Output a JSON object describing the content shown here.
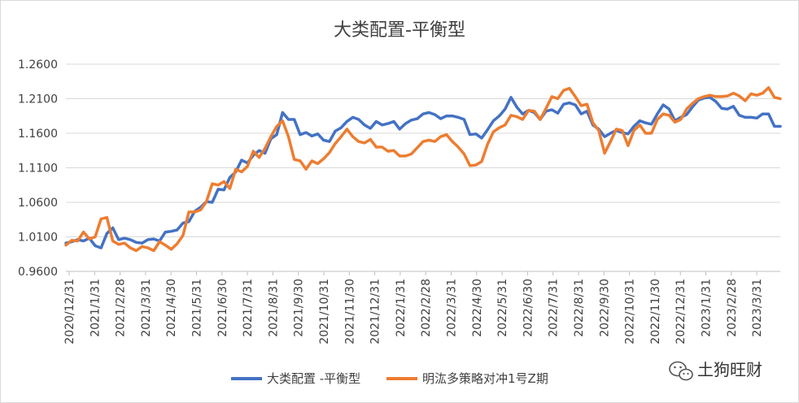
{
  "chart_data": {
    "type": "line",
    "title": "大类配置-平衡型",
    "xlabel": "",
    "ylabel": "",
    "ylim": [
      0.96,
      1.26
    ],
    "yticks": [
      "0.9600",
      "1.0100",
      "1.0600",
      "1.1100",
      "1.1600",
      "1.2100",
      "1.2600"
    ],
    "xtick_labels": [
      "2020/12/31",
      "2021/1/31",
      "2021/2/28",
      "2021/3/31",
      "2021/4/30",
      "2021/5/31",
      "2021/6/30",
      "2021/7/31",
      "2021/8/31",
      "2021/9/30",
      "2021/10/31",
      "2021/11/30",
      "2021/12/31",
      "2022/1/31",
      "2022/2/28",
      "2022/3/31",
      "2022/4/30",
      "2022/5/31",
      "2022/6/30",
      "2022/7/31",
      "2022/8/31",
      "2022/9/30",
      "2022/10/31",
      "2022/11/30",
      "2022/12/31",
      "2023/1/31",
      "2023/2/28",
      "2023/3/31"
    ],
    "grid": true,
    "legend_position": "bottom",
    "series": [
      {
        "name": "大类配置 -平衡型",
        "color": "#4472c4",
        "values": [
          1.001,
          1.003,
          1.006,
          1.004,
          1.008,
          0.997,
          0.994,
          1.015,
          1.023,
          1.006,
          1.008,
          1.006,
          1.002,
          1.001,
          1.006,
          1.007,
          1.004,
          1.017,
          1.018,
          1.02,
          1.03,
          1.032,
          1.047,
          1.053,
          1.061,
          1.06,
          1.079,
          1.078,
          1.096,
          1.104,
          1.121,
          1.117,
          1.128,
          1.135,
          1.131,
          1.152,
          1.158,
          1.19,
          1.18,
          1.18,
          1.158,
          1.161,
          1.156,
          1.159,
          1.15,
          1.148,
          1.163,
          1.168,
          1.177,
          1.183,
          1.18,
          1.172,
          1.167,
          1.177,
          1.172,
          1.174,
          1.177,
          1.166,
          1.174,
          1.179,
          1.181,
          1.188,
          1.19,
          1.187,
          1.181,
          1.185,
          1.185,
          1.183,
          1.18,
          1.158,
          1.159,
          1.153,
          1.165,
          1.178,
          1.185,
          1.195,
          1.212,
          1.198,
          1.188,
          1.193,
          1.19,
          1.18,
          1.192,
          1.194,
          1.189,
          1.202,
          1.204,
          1.201,
          1.188,
          1.192,
          1.172,
          1.166,
          1.155,
          1.16,
          1.164,
          1.161,
          1.159,
          1.17,
          1.178,
          1.175,
          1.173,
          1.188,
          1.201,
          1.195,
          1.178,
          1.183,
          1.187,
          1.198,
          1.208,
          1.211,
          1.212,
          1.206,
          1.196,
          1.195,
          1.199,
          1.186,
          1.183,
          1.183,
          1.182,
          1.188,
          1.188,
          1.17,
          1.17
        ]
      },
      {
        "name": "明汯多策略对冲1号Z期",
        "color": "#ed7d31",
        "values": [
          0.998,
          1.005,
          1.004,
          1.017,
          1.007,
          1.01,
          1.036,
          1.038,
          1.004,
          0.999,
          1.001,
          0.994,
          0.99,
          0.996,
          0.994,
          0.99,
          1.003,
          0.998,
          0.992,
          1.0,
          1.012,
          1.046,
          1.046,
          1.049,
          1.061,
          1.087,
          1.085,
          1.09,
          1.08,
          1.108,
          1.104,
          1.112,
          1.134,
          1.125,
          1.138,
          1.155,
          1.17,
          1.178,
          1.155,
          1.122,
          1.12,
          1.108,
          1.12,
          1.116,
          1.123,
          1.132,
          1.145,
          1.155,
          1.166,
          1.155,
          1.148,
          1.146,
          1.151,
          1.14,
          1.14,
          1.134,
          1.135,
          1.127,
          1.127,
          1.13,
          1.139,
          1.148,
          1.15,
          1.148,
          1.155,
          1.158,
          1.148,
          1.14,
          1.13,
          1.113,
          1.114,
          1.119,
          1.144,
          1.162,
          1.168,
          1.172,
          1.186,
          1.184,
          1.18,
          1.193,
          1.192,
          1.18,
          1.196,
          1.213,
          1.21,
          1.222,
          1.225,
          1.213,
          1.2,
          1.202,
          1.175,
          1.164,
          1.131,
          1.148,
          1.166,
          1.164,
          1.142,
          1.164,
          1.172,
          1.16,
          1.16,
          1.18,
          1.188,
          1.186,
          1.176,
          1.18,
          1.195,
          1.203,
          1.21,
          1.213,
          1.215,
          1.213,
          1.213,
          1.214,
          1.218,
          1.214,
          1.207,
          1.217,
          1.215,
          1.218,
          1.226,
          1.212,
          1.21
        ]
      }
    ]
  },
  "watermark": {
    "icon": "wechat-icon",
    "text": "土狗旺财"
  }
}
